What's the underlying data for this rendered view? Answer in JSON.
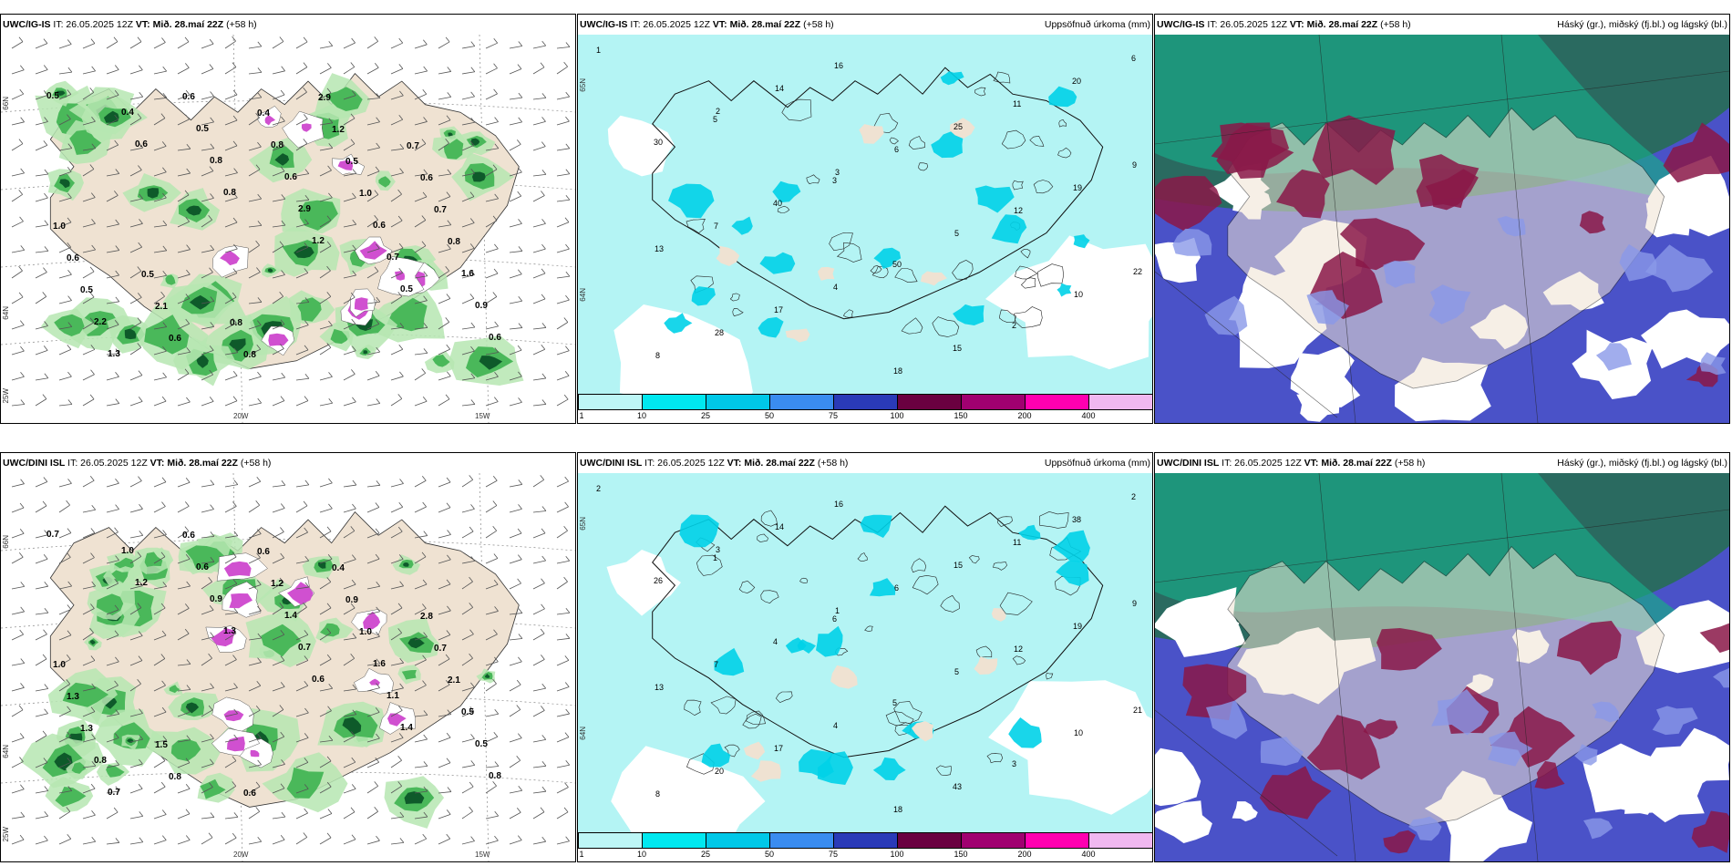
{
  "panels": [
    {
      "id": "p1",
      "model": "UWC/IG-IS",
      "it": "26.05.2025 12Z",
      "vt": "Mið. 28.maí 22Z",
      "lead": "(+58 h)",
      "right": "",
      "kind": "wind",
      "labels": [
        "66N",
        "64N",
        "25W",
        "20W",
        "15W"
      ],
      "values": [
        "0.5",
        "0.6",
        "0.8",
        "1.2",
        "0.5",
        "0.6",
        "0.4",
        "0.8",
        "2.9",
        "0.7",
        "0.9",
        "1.3",
        "0.5",
        "0.6",
        "0.6",
        "1.6",
        "2.2",
        "0.6",
        "0.8",
        "1.0",
        "0.8",
        "0.5",
        "0.6",
        "0.4",
        "0.5",
        "0.7",
        "0.6",
        "2.1",
        "0.8",
        "1.2",
        "0.6",
        "1.0",
        "0.5",
        "0.8",
        "2.9",
        "0.7"
      ]
    },
    {
      "id": "p2",
      "model": "UWC/IG-IS",
      "it": "26.05.2025 12Z",
      "vt": "Mið. 28.maí 22Z",
      "lead": "(+58 h)",
      "right": "Uppsöfnuð úrkoma (mm)",
      "kind": "precip",
      "labels": [
        "65N",
        "64N"
      ],
      "values": [
        "1",
        "2",
        "3",
        "5",
        "10",
        "8",
        "14",
        "6",
        "12",
        "22",
        "28",
        "16",
        "25",
        "19",
        "13",
        "17",
        "18",
        "11",
        "9",
        "7",
        "4",
        "15",
        "20",
        "30",
        "40",
        "50",
        "2",
        "6",
        "5",
        "3"
      ]
    },
    {
      "id": "p3",
      "model": "UWC/IG-IS",
      "it": "26.05.2025 12Z",
      "vt": "Mið. 28.maí 22Z",
      "lead": "(+58 h)",
      "right": "Háský (gr.), miðský (fj.bl.) og lágský (bl.)",
      "kind": "cloud"
    },
    {
      "id": "p4",
      "model": "UWC/DINI ISL",
      "it": "26.05.2025 12Z",
      "vt": "Mið. 28.maí 22Z",
      "lead": "(+58 h)",
      "right": "",
      "kind": "wind",
      "labels": [
        "66N",
        "64N",
        "25W",
        "20W",
        "15W"
      ],
      "values": [
        "0.7",
        "1.2",
        "1.3",
        "0.6",
        "1.4",
        "0.8",
        "1.0",
        "0.9",
        "0.7",
        "1.1",
        "0.5",
        "0.7",
        "0.6",
        "1.4",
        "1.6",
        "0.5",
        "0.8",
        "0.6",
        "1.2",
        "1.0",
        "2.1",
        "1.3",
        "0.8",
        "0.6",
        "0.9",
        "0.7",
        "1.3",
        "1.5",
        "0.6",
        "0.4",
        "2.8",
        "1.0"
      ]
    },
    {
      "id": "p5",
      "model": "UWC/DINI ISL",
      "it": "26.05.2025 12Z",
      "vt": "Mið. 28.maí 22Z",
      "lead": "(+58 h)",
      "right": "Uppsöfnuð úrkoma (mm)",
      "kind": "precip",
      "labels": [
        "65N",
        "64N"
      ],
      "values": [
        "2",
        "3",
        "1",
        "5",
        "10",
        "8",
        "14",
        "6",
        "12",
        "21",
        "20",
        "16",
        "15",
        "19",
        "13",
        "17",
        "18",
        "11",
        "9",
        "7",
        "4",
        "43",
        "38",
        "26",
        "4",
        "5",
        "3",
        "2",
        "1",
        "6"
      ]
    },
    {
      "id": "p6",
      "model": "UWC/DINI ISL",
      "it": "26.05.2025 12Z",
      "vt": "Mið. 28.maí 22Z",
      "lead": "(+58 h)",
      "right": "Háský (gr.), miðský (fj.bl.) og lágský (bl.)",
      "kind": "cloud"
    }
  ],
  "colorbar": {
    "ticks": [
      "1",
      "10",
      "25",
      "50",
      "75",
      "100",
      "150",
      "200",
      "400"
    ],
    "colors": [
      "#bdf6f6",
      "#00e8f0",
      "#00c8e8",
      "#3a8cf0",
      "#2a3ab8",
      "#6a0040",
      "#a00070",
      "#ff00b0",
      "#f0b8f0"
    ]
  },
  "palette": {
    "land": "#efe2d2",
    "sea": "#ffffff",
    "precipSea": "#b4f4f4",
    "precipLight": "#7ae8ee",
    "precipMid": "#00d2e8",
    "green1": "#b6e6b2",
    "green2": "#4ab85a",
    "green3": "#0e5a2a",
    "magenta": "#d050d0",
    "cloudHigh": "#1aa888",
    "cloudHighDark": "#2a6a60",
    "cloudMid": "#8a1848",
    "cloudLow": "#4a52c8",
    "cloudLowLight": "#8a98e8"
  }
}
